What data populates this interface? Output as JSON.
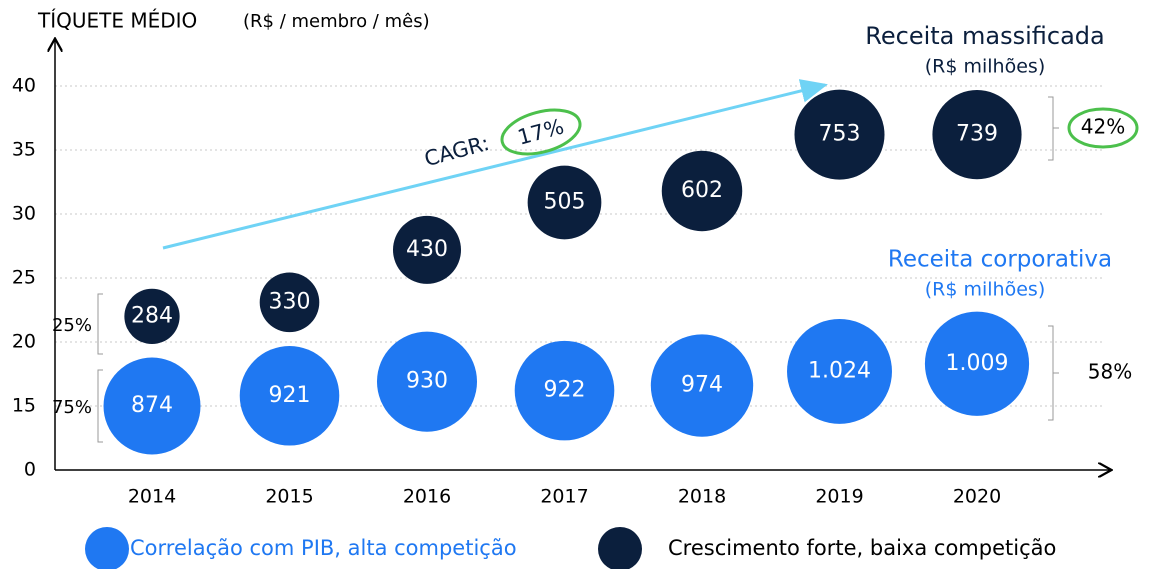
{
  "chart_data": {
    "type": "bubble",
    "y_label": "TÍQUETE MÉDIO",
    "y_unit": "(R$ / membro / mês)",
    "categories": [
      "2014",
      "2015",
      "2016",
      "2017",
      "2018",
      "2019",
      "2020"
    ],
    "ylim": [
      10,
      40
    ],
    "yticks": [
      {
        "value": 10,
        "label": "0"
      },
      15,
      20,
      25,
      30,
      35,
      40
    ],
    "grid": true,
    "series": [
      {
        "name": "Correlação com PIB, alta competição",
        "label": "Receita corporativa",
        "unit": "(R$ milhões)",
        "color": "#1f78f2",
        "values": [
          15,
          15.8,
          16.9,
          16.2,
          16.6,
          17.7,
          18.3
        ],
        "sizes": [
          874,
          921,
          930,
          922,
          974,
          1024,
          1009
        ],
        "value_labels": [
          "874",
          "921",
          "930",
          "922",
          "974",
          "1.024",
          "1.009"
        ]
      },
      {
        "name": "Crescimento forte, baixa competição",
        "label": "Receita massificada",
        "unit": "(R$ milhões)",
        "color": "#0b1f3d",
        "values": [
          22,
          23.1,
          27.2,
          30.9,
          31.8,
          36.2,
          36.2
        ],
        "sizes": [
          284,
          330,
          430,
          505,
          602,
          753,
          739
        ]
      }
    ],
    "annotations": [
      "25%",
      "75%",
      "42%",
      "58%",
      "CAGR:",
      "17%"
    ]
  }
}
